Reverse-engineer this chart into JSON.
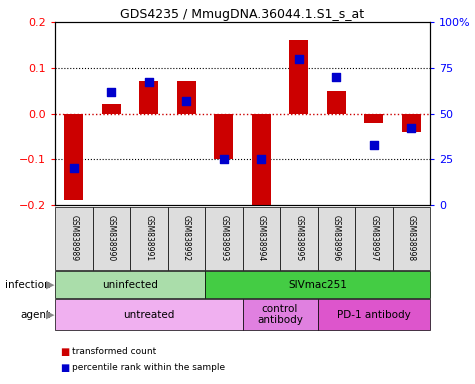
{
  "title": "GDS4235 / MmugDNA.36044.1.S1_s_at",
  "samples": [
    "GSM838989",
    "GSM838990",
    "GSM838991",
    "GSM838992",
    "GSM838993",
    "GSM838994",
    "GSM838995",
    "GSM838996",
    "GSM838997",
    "GSM838998"
  ],
  "transformed_count": [
    -0.19,
    0.02,
    0.07,
    0.07,
    -0.1,
    -0.2,
    0.16,
    0.05,
    -0.02,
    -0.04
  ],
  "percentile_rank": [
    20,
    62,
    67,
    57,
    25,
    25,
    80,
    70,
    33,
    42
  ],
  "ylim": [
    -0.2,
    0.2
  ],
  "y2lim": [
    0,
    100
  ],
  "yticks": [
    -0.2,
    -0.1,
    0.0,
    0.1,
    0.2
  ],
  "y2ticks": [
    0,
    25,
    50,
    75,
    100
  ],
  "y2ticklabels": [
    "0",
    "25",
    "50",
    "75",
    "100%"
  ],
  "bar_color": "#cc0000",
  "dot_color": "#0000cc",
  "infection_groups": [
    {
      "label": "uninfected",
      "start": 0,
      "end": 4,
      "color": "#aaddaa"
    },
    {
      "label": "SIVmac251",
      "start": 4,
      "end": 10,
      "color": "#44cc44"
    }
  ],
  "agent_groups": [
    {
      "label": "untreated",
      "start": 0,
      "end": 5,
      "color": "#f0b0f0"
    },
    {
      "label": "control\nantibody",
      "start": 5,
      "end": 7,
      "color": "#e080e0"
    },
    {
      "label": "PD-1 antibody",
      "start": 7,
      "end": 10,
      "color": "#dd55cc"
    }
  ],
  "legend_items": [
    {
      "color": "#cc0000",
      "label": "transformed count"
    },
    {
      "color": "#0000cc",
      "label": "percentile rank within the sample"
    }
  ],
  "zero_line_color": "#cc0000",
  "infection_label": "infection",
  "agent_label": "agent",
  "bar_width": 0.5,
  "dot_size": 35
}
